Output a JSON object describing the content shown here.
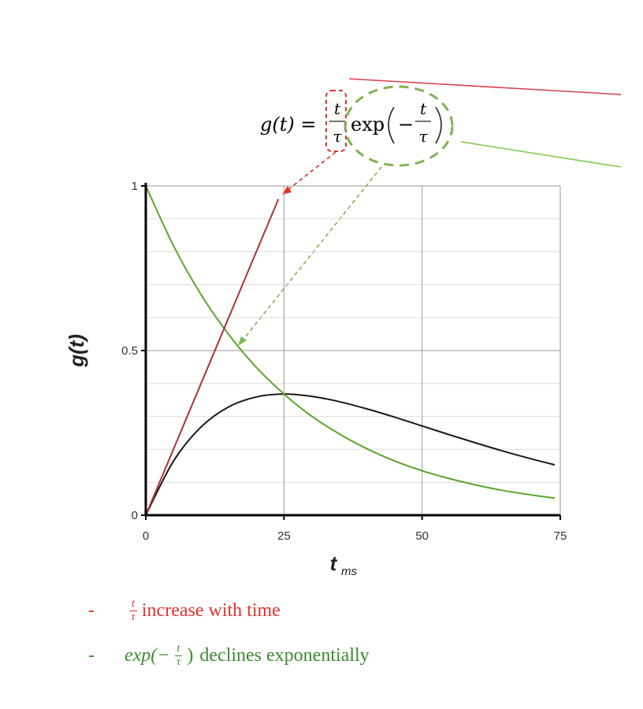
{
  "equation": {
    "lhs": "g(t) =",
    "frac_num": "t",
    "frac_den": "τ",
    "func": "exp",
    "minus": "−",
    "inner_num": "t",
    "inner_den": "τ"
  },
  "notes": [
    {
      "bullet": "-",
      "frac_num": "t",
      "frac_den": "τ",
      "text": "increase with time",
      "color": "#e0322c"
    },
    {
      "bullet": "-",
      "prefix": "exp(−",
      "frac_num": "t",
      "frac_den": "τ",
      "suffix": ")",
      "text": "declines exponentially",
      "color": "#3c8a2e"
    }
  ],
  "chart_data": {
    "type": "line",
    "xlabel": "t",
    "xlabel_sub": "ms",
    "ylabel": "g(t)",
    "xlim": [
      0,
      75
    ],
    "ylim": [
      0,
      1
    ],
    "xticks": [
      "0",
      "25",
      "50",
      "75"
    ],
    "yticks": [
      "0",
      "0.5",
      "1"
    ],
    "tau": 25,
    "series": [
      {
        "color": "#1a1a1a",
        "x": [
          0,
          5,
          10,
          15,
          20,
          25,
          30,
          35,
          40,
          45,
          50,
          55,
          60,
          65,
          70,
          74
        ],
        "y": [
          0,
          0.164,
          0.268,
          0.329,
          0.359,
          0.368,
          0.361,
          0.345,
          0.323,
          0.298,
          0.271,
          0.244,
          0.218,
          0.193,
          0.17,
          0.153
        ]
      },
      {
        "color": "#5aa52c",
        "x": [
          0,
          5,
          10,
          15,
          20,
          25,
          30,
          35,
          40,
          45,
          50,
          55,
          60,
          65,
          70,
          74
        ],
        "y": [
          1,
          0.819,
          0.67,
          0.549,
          0.449,
          0.368,
          0.301,
          0.247,
          0.202,
          0.165,
          0.135,
          0.111,
          0.091,
          0.074,
          0.061,
          0.052
        ]
      },
      {
        "color": "#b0303a",
        "x": [
          0,
          24
        ],
        "y": [
          0,
          0.96
        ]
      }
    ],
    "grid": true
  },
  "colors": {
    "red_annotation": "#e0322c",
    "green_annotation": "#6cbf3a",
    "green_dashed": "#7db351"
  }
}
